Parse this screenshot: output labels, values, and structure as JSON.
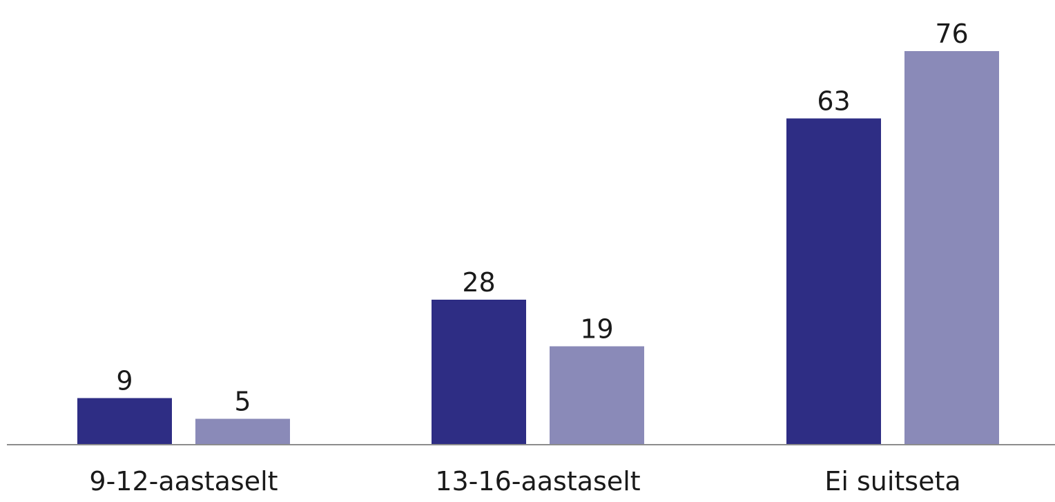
{
  "chart_data": {
    "type": "bar",
    "title": "",
    "xlabel": "",
    "ylabel": "",
    "categories": [
      "9-12-aastaselt",
      "13-16-aastaselt",
      "Ei suitseta"
    ],
    "series": [
      {
        "color": "#2e2d84",
        "values": [
          9,
          28,
          63
        ]
      },
      {
        "color": "#8a8ab8",
        "values": [
          5,
          19,
          76
        ]
      }
    ],
    "ylim": [
      0,
      82
    ],
    "grid": false,
    "legend": "none"
  }
}
